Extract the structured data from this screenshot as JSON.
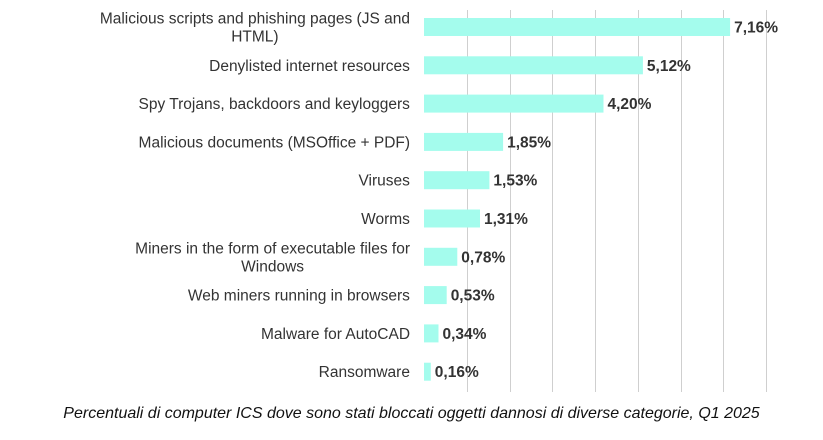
{
  "caption": "Percentuali di computer ICS dove sono stati bloccati oggetti dannosi di diverse categorie, Q1 2025",
  "colors": {
    "bar": "#a4fced",
    "text": "#333333",
    "grid": "#cfcfcf"
  },
  "chart_data": {
    "type": "bar",
    "orientation": "horizontal",
    "categories": [
      [
        "Malicious scripts and phishing pages (JS and",
        "HTML)"
      ],
      [
        "Denylisted internet resources"
      ],
      [
        "Spy Trojans, backdoors and keyloggers"
      ],
      [
        "Malicious documents (MSOffice + PDF)"
      ],
      [
        "Viruses"
      ],
      [
        "Worms"
      ],
      [
        "Miners in the form of executable files for",
        "Windows"
      ],
      [
        "Web miners running in browsers"
      ],
      [
        "Malware for AutoCAD"
      ],
      [
        "Ransomware"
      ]
    ],
    "values": [
      7.16,
      5.12,
      4.2,
      1.85,
      1.53,
      1.31,
      0.78,
      0.53,
      0.34,
      0.16
    ],
    "value_labels": [
      "7,16%",
      "5,12%",
      "4,20%",
      "1,85%",
      "1,53%",
      "1,31%",
      "0,78%",
      "0,53%",
      "0,34%",
      "0,16%"
    ],
    "xlim": [
      0,
      8
    ],
    "x_gridlines": [
      1,
      2,
      3,
      4,
      5,
      6,
      7,
      8
    ],
    "grid": true,
    "legend": "none",
    "title": "",
    "xlabel": "",
    "ylabel": ""
  }
}
